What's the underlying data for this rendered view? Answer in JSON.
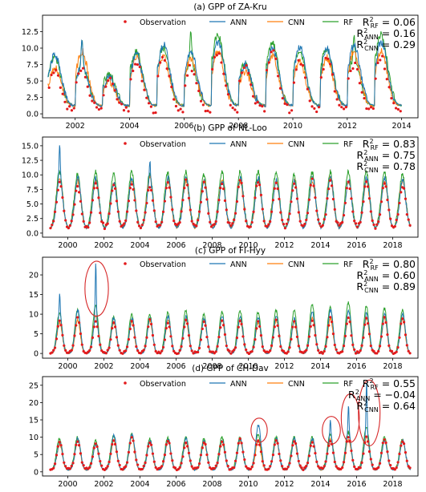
{
  "colors": {
    "observation": "#e31a1c",
    "ANN": "#1f77b4",
    "CNN": "#ff7f0e",
    "RF": "#2ca02c",
    "highlight": "#d62728"
  },
  "legend_labels": [
    "Observation",
    "ANN",
    "CNN",
    "RF"
  ],
  "chart_data": [
    {
      "type": "line",
      "title": "(a) GPP of ZA-Kru",
      "xlabel": "",
      "ylabel": "",
      "xlim": [
        2000.8,
        2014.6
      ],
      "ylim": [
        -0.6,
        15.0
      ],
      "xticks": [
        2002,
        2004,
        2006,
        2008,
        2010,
        2012,
        2014
      ],
      "yticks": [
        0.0,
        2.5,
        5.0,
        7.5,
        10.0,
        12.5
      ],
      "ytick_labels": [
        "0.0",
        "2.5",
        "5.0",
        "7.5",
        "10.0",
        "12.5"
      ],
      "x_start": 2001.0,
      "x_end": 2014.0,
      "obs_peaks": [
        6.5,
        6.5,
        5.0,
        8.0,
        8.5,
        7.0,
        9.5,
        7.0,
        9.5,
        8.0,
        8.5,
        7.5,
        8.5
      ],
      "peaks": {
        "ANN": [
          9.0,
          11.0,
          5.5,
          9.0,
          10.5,
          9.5,
          11.0,
          7.5,
          10.0,
          10.0,
          10.0,
          10.5,
          11.0
        ],
        "CNN": [
          7.0,
          9.5,
          5.0,
          8.5,
          8.5,
          8.5,
          9.5,
          6.5,
          9.0,
          8.0,
          8.5,
          9.5,
          9.5
        ],
        "RF": [
          8.5,
          11.5,
          6.0,
          9.5,
          10.0,
          12.5,
          12.0,
          7.5,
          11.0,
          9.5,
          10.0,
          12.0,
          12.0
        ]
      },
      "base": {
        "obs": 0.5,
        "model": 1.2
      },
      "phase": 0.25,
      "width": 0.22,
      "noise": 0.9,
      "obs_per_year": 12,
      "r2": [
        {
          "label": "R²RF = 0.06",
          "sub": "RF",
          "value": "0.06"
        },
        {
          "label": "R²ANN = 0.16",
          "sub": "ANN",
          "value": "0.16"
        },
        {
          "label": "R²CNN = 0.29",
          "sub": "CNN",
          "value": "0.29"
        }
      ],
      "highlights": []
    },
    {
      "type": "line",
      "title": "(b) GPP of NL-Loo",
      "xlabel": "",
      "ylabel": "",
      "xlim": [
        1998.6,
        2019.4
      ],
      "ylim": [
        -0.7,
        16.5
      ],
      "xticks": [
        2000,
        2002,
        2004,
        2006,
        2008,
        2010,
        2012,
        2014,
        2016,
        2018
      ],
      "yticks": [
        0.0,
        2.5,
        5.0,
        7.5,
        10.0,
        12.5,
        15.0
      ],
      "ytick_labels": [
        "0.0",
        "2.5",
        "5.0",
        "7.5",
        "10.0",
        "12.5",
        "15.0"
      ],
      "x_start": 1999.0,
      "x_end": 2019.0,
      "obs_peaks": [
        8.5,
        8.0,
        8.5,
        8.0,
        8.5,
        8.0,
        8.5,
        9.0,
        8.5,
        8.5,
        9.0,
        9.0,
        8.5,
        8.5,
        9.0,
        9.0,
        8.5,
        9.0,
        8.5,
        8.0
      ],
      "peaks": {
        "ANN": [
          15.5,
          9.5,
          9.5,
          8.5,
          9.5,
          12.5,
          9.5,
          9.5,
          9.0,
          9.0,
          9.5,
          9.5,
          9.0,
          9.0,
          9.5,
          9.5,
          9.0,
          9.5,
          9.5,
          9.0
        ],
        "CNN": [
          9.5,
          9.0,
          9.0,
          8.5,
          9.0,
          9.5,
          9.0,
          9.0,
          9.0,
          9.0,
          9.0,
          9.0,
          9.0,
          9.0,
          9.0,
          9.5,
          9.0,
          9.0,
          9.0,
          9.0
        ],
        "RF": [
          10.5,
          10.0,
          10.5,
          10.0,
          10.5,
          10.0,
          10.5,
          10.5,
          10.0,
          10.5,
          10.5,
          10.5,
          10.5,
          10.0,
          10.5,
          10.5,
          10.5,
          10.5,
          10.5,
          10.0
        ]
      },
      "base": {
        "obs": 1.0,
        "model": 0.8
      },
      "phase": 0.55,
      "width": 0.17,
      "noise": 0.6,
      "obs_per_year": 12,
      "r2": [
        {
          "label": "R²RF = 0.83",
          "sub": "RF",
          "value": "0.83"
        },
        {
          "label": "R²ANN = 0.75",
          "sub": "ANN",
          "value": "0.75"
        },
        {
          "label": "R²CNN = 0.78",
          "sub": "CNN",
          "value": "0.78"
        }
      ],
      "highlights": []
    },
    {
      "type": "line",
      "title": "(c) GPP of FI-Hyy",
      "xlabel": "",
      "ylabel": "",
      "xlim": [
        1998.6,
        2019.4
      ],
      "ylim": [
        -1.2,
        24.5
      ],
      "xticks": [
        2000,
        2002,
        2004,
        2006,
        2008,
        2010,
        2012,
        2014,
        2016,
        2018
      ],
      "yticks": [
        0,
        5,
        10,
        15,
        20
      ],
      "ytick_labels": [
        "0",
        "5",
        "10",
        "15",
        "20"
      ],
      "x_start": 1999.0,
      "x_end": 2019.0,
      "obs_peaks": [
        8.5,
        9.0,
        8.0,
        8.0,
        8.0,
        8.5,
        8.0,
        8.5,
        8.0,
        8.5,
        8.5,
        8.0,
        8.5,
        8.0,
        8.5,
        9.0,
        9.0,
        9.0,
        9.0,
        9.0
      ],
      "peaks": {
        "ANN": [
          15.0,
          11.0,
          23.0,
          9.0,
          9.0,
          9.0,
          9.5,
          9.5,
          9.0,
          9.5,
          9.5,
          9.0,
          9.5,
          9.0,
          10.5,
          11.0,
          11.0,
          10.5,
          10.0,
          10.0
        ],
        "CNN": [
          8.0,
          8.5,
          9.5,
          8.0,
          8.0,
          8.5,
          8.5,
          8.5,
          8.5,
          8.5,
          8.5,
          8.0,
          8.5,
          8.0,
          9.0,
          9.0,
          9.5,
          9.0,
          9.0,
          9.0
        ],
        "RF": [
          10.5,
          11.0,
          12.0,
          9.5,
          10.0,
          10.0,
          10.5,
          11.0,
          10.0,
          10.5,
          11.0,
          10.5,
          11.0,
          11.0,
          12.5,
          12.0,
          13.0,
          12.0,
          11.5,
          11.0
        ]
      },
      "base": {
        "obs": 0.2,
        "model": 0.0
      },
      "phase": 0.55,
      "width": 0.14,
      "noise": 0.5,
      "obs_per_year": 12,
      "r2": [
        {
          "label": "R²RF = 0.80",
          "sub": "RF",
          "value": "0.80"
        },
        {
          "label": "R²ANN = 0.60",
          "sub": "ANN",
          "value": "0.60"
        },
        {
          "label": "R²CNN = 0.89",
          "sub": "CNN",
          "value": "0.89"
        }
      ],
      "highlights": [
        {
          "x": 2001.6,
          "y": 16.5,
          "rx": 0.65,
          "ry": 7.0
        }
      ]
    },
    {
      "type": "line",
      "title": "(d) GPP of CH-Dav",
      "xlabel": "",
      "ylabel": "",
      "xlim": [
        1998.6,
        2019.4
      ],
      "ylim": [
        -1.2,
        27.5
      ],
      "xticks": [
        2000,
        2002,
        2004,
        2006,
        2008,
        2010,
        2012,
        2014,
        2016,
        2018
      ],
      "yticks": [
        0,
        5,
        10,
        15,
        20,
        25
      ],
      "ytick_labels": [
        "0",
        "5",
        "10",
        "15",
        "20",
        "25"
      ],
      "x_start": 1999.0,
      "x_end": 2019.0,
      "obs_peaks": [
        8.5,
        9.0,
        8.5,
        9.0,
        10.0,
        8.5,
        9.0,
        8.5,
        8.5,
        9.0,
        9.5,
        9.0,
        9.0,
        9.0,
        8.5,
        9.0,
        10.0,
        10.0,
        9.5,
        9.0
      ],
      "peaks": {
        "ANN": [
          8.5,
          9.5,
          8.0,
          10.5,
          11.0,
          9.0,
          9.5,
          9.5,
          9.0,
          9.0,
          9.5,
          13.5,
          9.5,
          9.5,
          9.5,
          15.0,
          19.0,
          26.0,
          9.0,
          9.0
        ],
        "CNN": [
          8.0,
          9.0,
          8.0,
          9.0,
          10.0,
          8.5,
          9.0,
          8.5,
          8.5,
          8.5,
          9.0,
          9.0,
          9.0,
          9.0,
          9.0,
          9.5,
          9.5,
          10.0,
          9.0,
          9.0
        ],
        "RF": [
          9.5,
          10.0,
          9.0,
          10.5,
          11.0,
          9.5,
          10.0,
          10.0,
          9.5,
          10.0,
          10.0,
          11.0,
          10.0,
          10.0,
          10.0,
          11.0,
          11.5,
          13.0,
          10.0,
          9.5
        ]
      },
      "base": {
        "obs": 0.8,
        "model": 0.5
      },
      "phase": 0.55,
      "width": 0.15,
      "noise": 0.6,
      "obs_per_year": 12,
      "r2": [
        {
          "label": "R²RF = 0.55",
          "sub": "RF",
          "value": "0.55"
        },
        {
          "label": "R²ANN = −0.04",
          "sub": "ANN",
          "value": "−0.04"
        },
        {
          "label": "R²CNN = 0.64",
          "sub": "CNN",
          "value": "0.64"
        }
      ],
      "highlights": [
        {
          "x": 2010.6,
          "y": 12.0,
          "rx": 0.45,
          "ry": 3.5
        },
        {
          "x": 2014.6,
          "y": 12.0,
          "rx": 0.5,
          "ry": 4.0
        },
        {
          "x": 2015.65,
          "y": 15.5,
          "rx": 0.5,
          "ry": 7.0
        },
        {
          "x": 2016.7,
          "y": 17.0,
          "rx": 0.6,
          "ry": 9.5
        }
      ]
    }
  ]
}
